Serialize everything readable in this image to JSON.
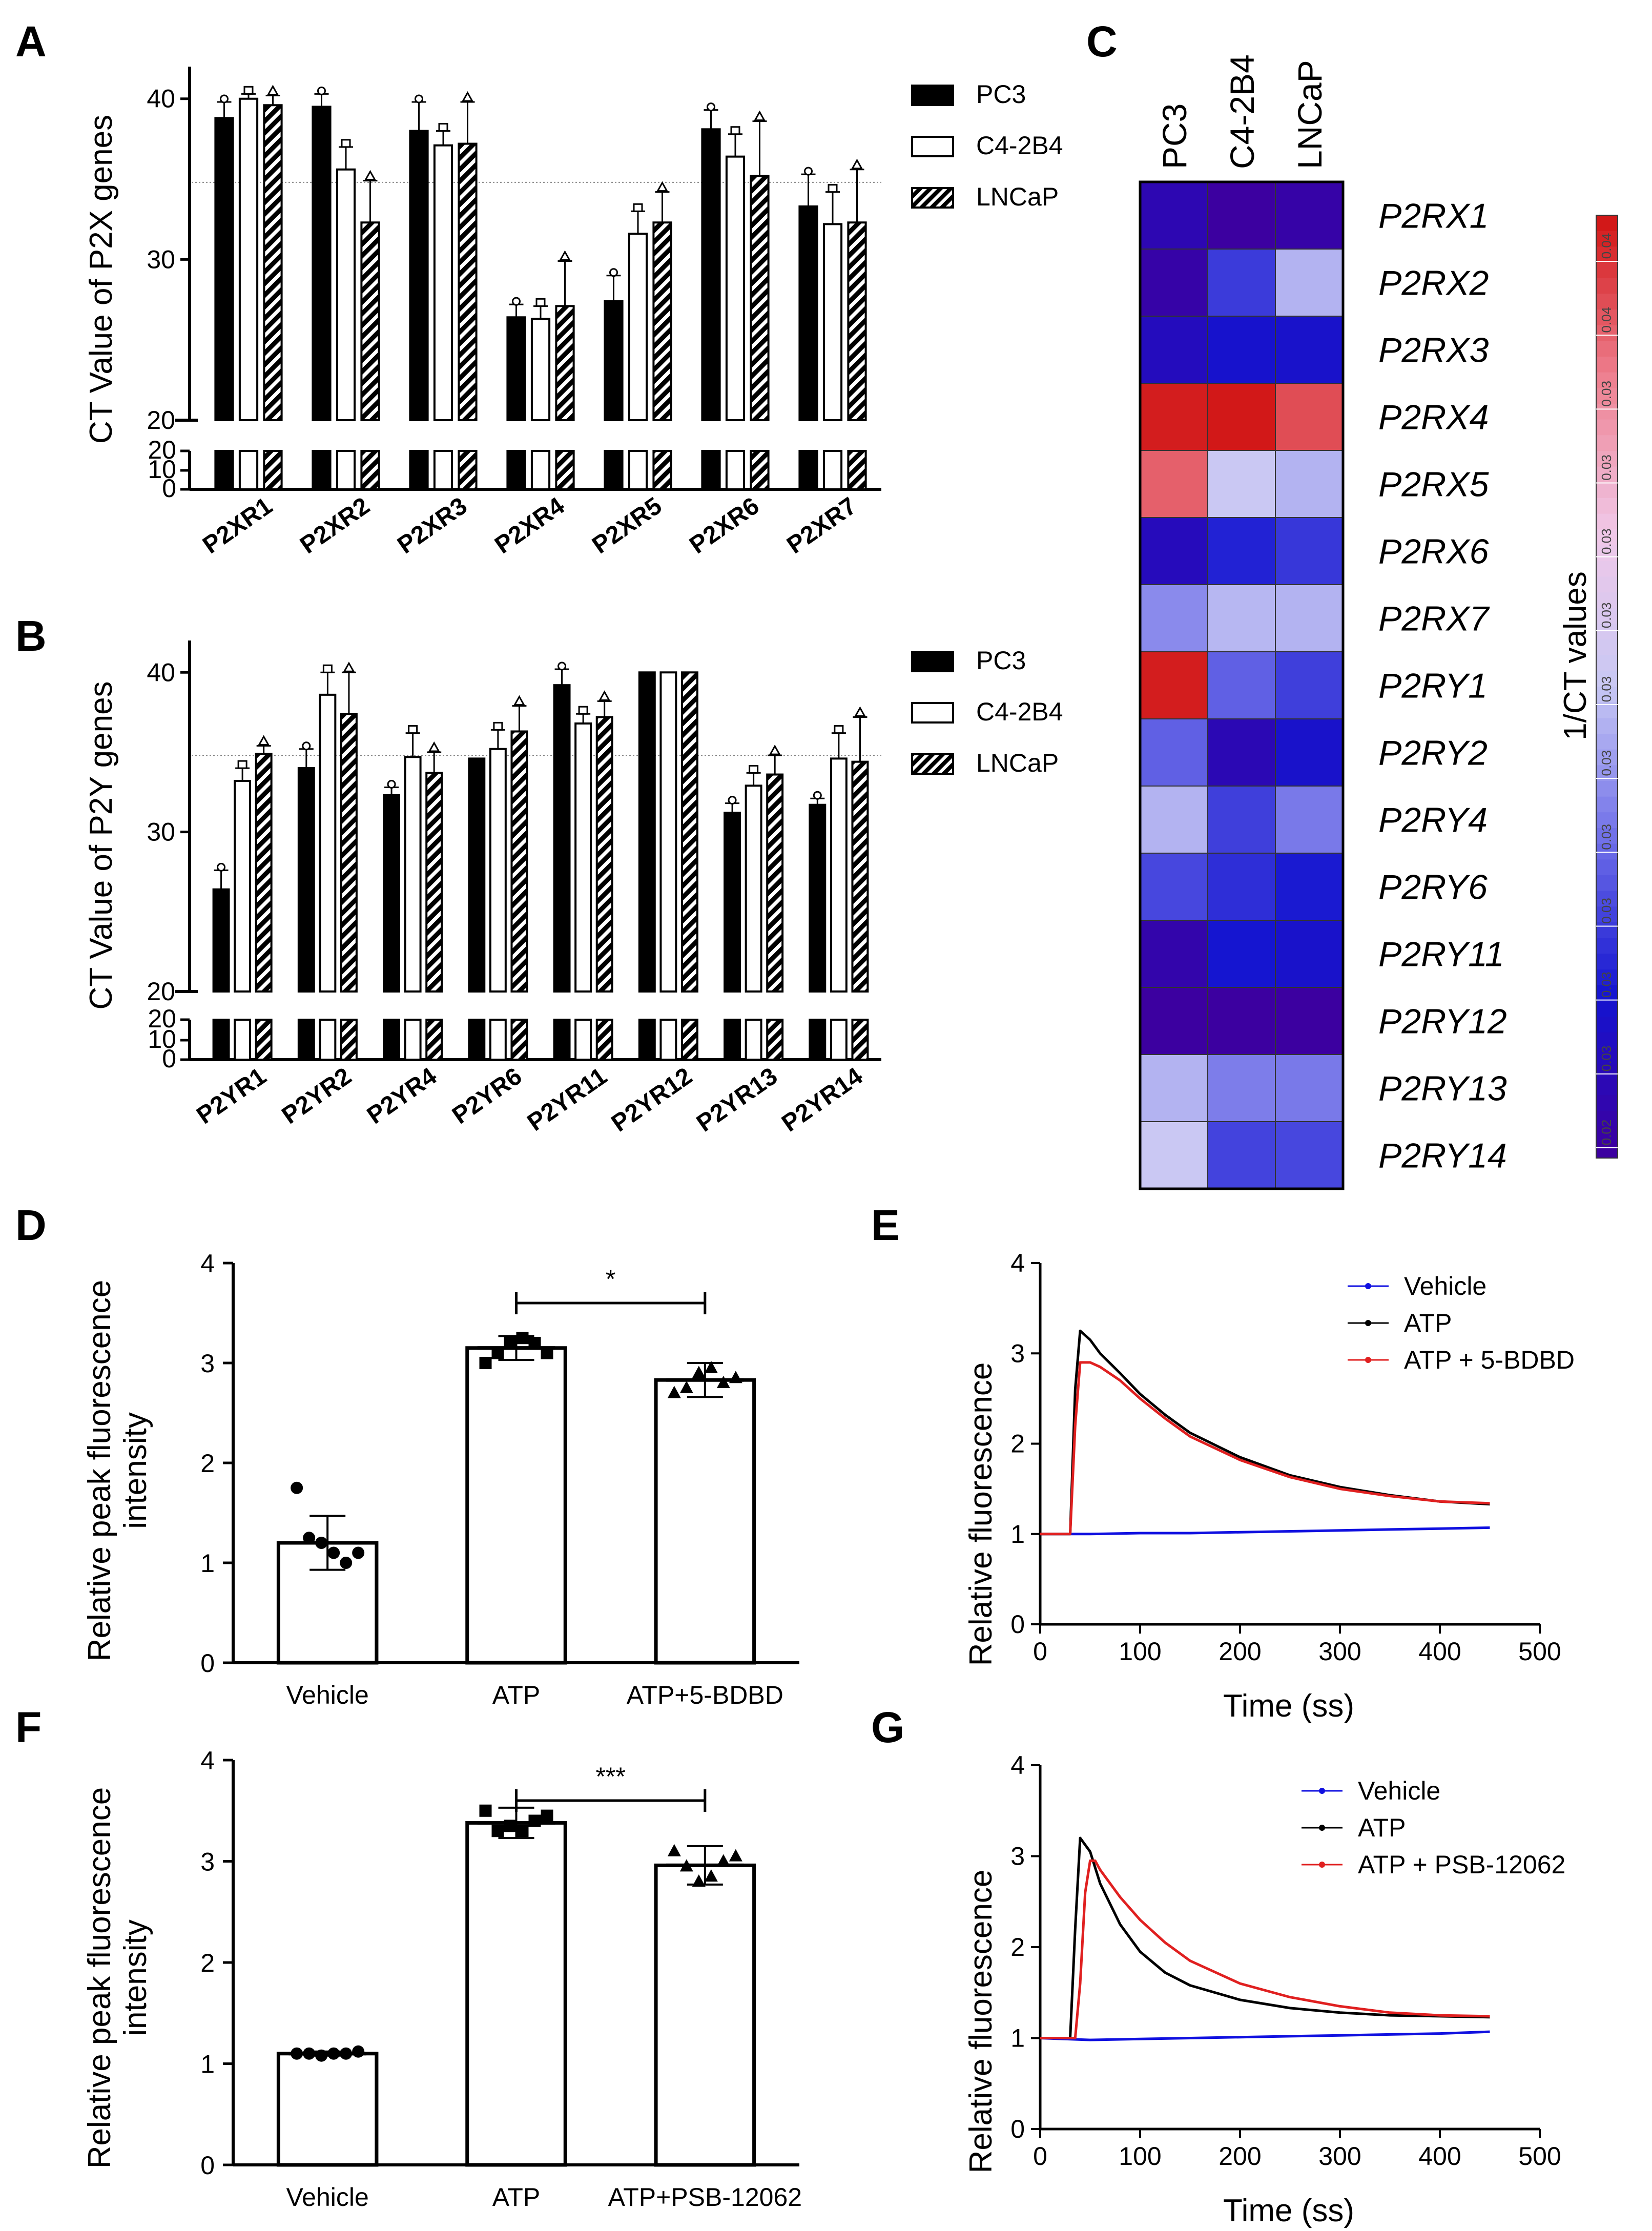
{
  "panels": {
    "A": {
      "letter": "A",
      "title": "",
      "ylabel": "CT Value of P2X genes",
      "yticks": [
        "0",
        "10",
        "20",
        "20",
        "30",
        "40"
      ]
    },
    "B": {
      "letter": "B",
      "title": "",
      "ylabel": "CT Value of P2Y genes",
      "yticks": [
        "0",
        "10",
        "20",
        "20",
        "30",
        "40"
      ]
    },
    "C": {
      "letter": "C",
      "title": "",
      "colorbar_label": "1/CT values",
      "colorbar_ticks": [
        "0.04",
        "0.04",
        "0.03",
        "0.03",
        "0.03",
        "0.03",
        "0.03",
        "0.03",
        "0.03",
        "0.03",
        "0.03",
        "0.03",
        "0.02"
      ]
    },
    "D": {
      "letter": "D",
      "title": "",
      "ylabel_line1": "Relative peak fluorescence",
      "ylabel_line2": "intensity",
      "significance": "*",
      "yticks": [
        "0",
        "1",
        "2",
        "3",
        "4"
      ]
    },
    "E": {
      "letter": "E",
      "title": "",
      "ylabel": "Relative fluorescence",
      "xlabel": "Time (ss)",
      "xticks": [
        "0",
        "100",
        "200",
        "300",
        "400",
        "500"
      ],
      "yticks": [
        "0",
        "1",
        "2",
        "3",
        "4"
      ]
    },
    "F": {
      "letter": "F",
      "title": "",
      "ylabel_line1": "Relative peak fluorescence",
      "ylabel_line2": "intensity",
      "significance": "***",
      "yticks": [
        "0",
        "1",
        "2",
        "3",
        "4"
      ]
    },
    "G": {
      "letter": "G",
      "title": "",
      "ylabel": "Relative fluorescence",
      "xlabel": "Time (ss)",
      "xticks": [
        "0",
        "100",
        "200",
        "300",
        "400",
        "500"
      ],
      "yticks": [
        "0",
        "1",
        "2",
        "3",
        "4"
      ]
    }
  },
  "legend_cells": [
    "PC3",
    "C4-2B4",
    "LNCaP"
  ],
  "chart_data": [
    {
      "id": "A",
      "type": "bar",
      "title": "",
      "xlabel": "",
      "ylabel": "CT Value of P2X genes",
      "categories": [
        "P2XR1",
        "P2XR2",
        "P2XR3",
        "P2XR4",
        "P2XR5",
        "P2XR6",
        "P2XR7"
      ],
      "ylim": [
        0,
        42
      ],
      "axis_break": [
        20,
        20
      ],
      "reference_line": 34.8,
      "series": [
        {
          "name": "PC3",
          "values": [
            38.8,
            39.5,
            38.0,
            26.4,
            27.4,
            38.1,
            33.3
          ],
          "errors": [
            1.0,
            0.8,
            1.8,
            0.8,
            1.6,
            1.2,
            2.0
          ]
        },
        {
          "name": "C4-2B4",
          "values": [
            40.0,
            35.6,
            37.1,
            26.3,
            31.6,
            36.4,
            32.2
          ],
          "errors": [
            0.3,
            1.4,
            0.9,
            0.8,
            1.4,
            1.4,
            2.0
          ]
        },
        {
          "name": "LNCaP",
          "values": [
            39.6,
            32.3,
            37.2,
            27.1,
            32.3,
            35.2,
            32.3
          ],
          "errors": [
            0.6,
            2.6,
            2.6,
            2.8,
            1.9,
            3.4,
            3.3
          ]
        }
      ]
    },
    {
      "id": "B",
      "type": "bar",
      "title": "",
      "xlabel": "",
      "ylabel": "CT Value of P2Y genes",
      "categories": [
        "P2YR1",
        "P2YR2",
        "P2YR4",
        "P2YR6",
        "P2YR11",
        "P2YR12",
        "P2YR13",
        "P2YR14"
      ],
      "ylim": [
        0,
        42
      ],
      "axis_break": [
        20,
        20
      ],
      "reference_line": 34.8,
      "series": [
        {
          "name": "PC3",
          "values": [
            26.4,
            34.0,
            32.3,
            34.6,
            39.2,
            40.0,
            31.2,
            31.7
          ],
          "errors": [
            1.2,
            1.2,
            0.5,
            0.0,
            1.0,
            0.0,
            0.6,
            0.4
          ]
        },
        {
          "name": "C4-2B4",
          "values": [
            33.2,
            38.6,
            34.7,
            35.2,
            36.8,
            40.0,
            32.9,
            34.6
          ],
          "errors": [
            0.8,
            1.4,
            1.5,
            1.2,
            0.6,
            0.0,
            0.8,
            1.6
          ]
        },
        {
          "name": "LNCaP",
          "values": [
            34.9,
            37.4,
            33.7,
            36.3,
            37.2,
            40.0,
            33.6,
            34.4
          ],
          "errors": [
            0.5,
            2.6,
            1.3,
            1.6,
            1.0,
            0.0,
            1.2,
            2.8
          ]
        }
      ]
    },
    {
      "id": "C",
      "type": "heatmap",
      "title": "",
      "columns": [
        "PC3",
        "C4-2B4",
        "LNCaP"
      ],
      "rows": [
        "P2RX1",
        "P2RX2",
        "P2RX3",
        "P2RX4",
        "P2RX5",
        "P2RX6",
        "P2RX7",
        "P2RY1",
        "P2RY2",
        "P2RY4",
        "P2RY6",
        "P2RY11",
        "P2RY12",
        "P2RY13",
        "P2RY14"
      ],
      "values": [
        [
          0.0258,
          0.025,
          0.0253
        ],
        [
          0.0253,
          0.0281,
          0.031
        ],
        [
          0.0263,
          0.027,
          0.0269
        ],
        [
          0.0379,
          0.038,
          0.0369
        ],
        [
          0.0365,
          0.0316,
          0.031
        ],
        [
          0.0262,
          0.0275,
          0.028
        ],
        [
          0.03,
          0.0311,
          0.031
        ],
        [
          0.0379,
          0.029,
          0.0282
        ],
        [
          0.029,
          0.0259,
          0.0269
        ],
        [
          0.031,
          0.0282,
          0.0296
        ],
        [
          0.0284,
          0.0278,
          0.0273
        ],
        [
          0.0255,
          0.0272,
          0.0269
        ],
        [
          0.025,
          0.025,
          0.025
        ],
        [
          0.031,
          0.0297,
          0.0296
        ],
        [
          0.0316,
          0.0283,
          0.0284
        ]
      ],
      "colorbar_label": "1/CT values",
      "vmin": 0.025,
      "vmax": 0.038,
      "colormap": [
        "#3c00a0",
        "#1414d0",
        "#6e6ee8",
        "#c8c8f4",
        "#f0c8e8",
        "#ee8090",
        "#d21818"
      ]
    },
    {
      "id": "D",
      "type": "bar",
      "title": "",
      "xlabel": "",
      "ylabel": "Relative peak fluorescence intensity",
      "categories": [
        "Vehicle",
        "ATP",
        "ATP+5-BDBD"
      ],
      "values": [
        1.2,
        3.15,
        2.83
      ],
      "errors": [
        0.27,
        0.12,
        0.17
      ],
      "points": [
        [
          1.75,
          1.25,
          1.2,
          1.1,
          1.0,
          1.1
        ],
        [
          3.0,
          3.1,
          3.2,
          3.25,
          3.2,
          3.1
        ],
        [
          2.7,
          2.75,
          2.9,
          2.95,
          2.8,
          2.85
        ]
      ],
      "ylim": [
        0,
        4
      ],
      "significance": {
        "between": [
          "ATP",
          "ATP+5-BDBD"
        ],
        "label": "*"
      }
    },
    {
      "id": "E",
      "type": "line",
      "title": "",
      "xlabel": "Time (ss)",
      "ylabel": "Relative fluorescence",
      "xlim": [
        0,
        500
      ],
      "ylim": [
        0,
        4
      ],
      "series": [
        {
          "name": "Vehicle",
          "color": "#1010e0",
          "x": [
            0,
            50,
            100,
            150,
            200,
            250,
            300,
            350,
            400,
            450
          ],
          "y": [
            1.0,
            1.0,
            1.01,
            1.01,
            1.02,
            1.03,
            1.04,
            1.05,
            1.06,
            1.07
          ]
        },
        {
          "name": "ATP",
          "color": "#000000",
          "x": [
            0,
            30,
            35,
            40,
            50,
            60,
            80,
            100,
            125,
            150,
            200,
            250,
            300,
            350,
            400,
            450
          ],
          "y": [
            1.0,
            1.0,
            2.6,
            3.25,
            3.15,
            3.0,
            2.78,
            2.55,
            2.32,
            2.12,
            1.85,
            1.65,
            1.52,
            1.43,
            1.36,
            1.33
          ]
        },
        {
          "name": "ATP + 5-BDBD",
          "color": "#e02020",
          "x": [
            0,
            30,
            35,
            40,
            50,
            60,
            80,
            100,
            125,
            150,
            200,
            250,
            300,
            350,
            400,
            450
          ],
          "y": [
            1.0,
            1.0,
            2.2,
            2.9,
            2.9,
            2.85,
            2.7,
            2.5,
            2.28,
            2.08,
            1.82,
            1.63,
            1.5,
            1.42,
            1.36,
            1.34
          ]
        }
      ]
    },
    {
      "id": "F",
      "type": "bar",
      "title": "",
      "xlabel": "",
      "ylabel": "Relative peak fluorescence intensity",
      "categories": [
        "Vehicle",
        "ATP",
        "ATP+PSB-12062"
      ],
      "values": [
        1.1,
        3.38,
        2.96
      ],
      "errors": [
        0.02,
        0.15,
        0.19
      ],
      "points": [
        [
          1.1,
          1.1,
          1.08,
          1.1,
          1.1,
          1.12
        ],
        [
          3.5,
          3.3,
          3.35,
          3.3,
          3.4,
          3.45
        ],
        [
          3.1,
          2.95,
          2.8,
          2.85,
          3.0,
          3.05
        ]
      ],
      "ylim": [
        0,
        4
      ],
      "significance": {
        "between": [
          "ATP",
          "ATP+PSB-12062"
        ],
        "label": "***"
      }
    },
    {
      "id": "G",
      "type": "line",
      "title": "",
      "xlabel": "Time (ss)",
      "ylabel": "Relative fluorescence",
      "xlim": [
        0,
        500
      ],
      "ylim": [
        0,
        4
      ],
      "series": [
        {
          "name": "Vehicle",
          "color": "#1010e0",
          "x": [
            0,
            50,
            100,
            150,
            200,
            250,
            300,
            350,
            400,
            450
          ],
          "y": [
            1.0,
            0.98,
            0.99,
            1.0,
            1.01,
            1.02,
            1.03,
            1.04,
            1.05,
            1.07
          ]
        },
        {
          "name": "ATP",
          "color": "#000000",
          "x": [
            0,
            30,
            35,
            40,
            50,
            60,
            80,
            100,
            125,
            150,
            200,
            250,
            300,
            350,
            400,
            450
          ],
          "y": [
            1.0,
            1.0,
            2.2,
            3.2,
            3.05,
            2.7,
            2.25,
            1.95,
            1.72,
            1.58,
            1.42,
            1.33,
            1.28,
            1.25,
            1.24,
            1.23
          ]
        },
        {
          "name": "ATP + PSB-12062",
          "color": "#e02020",
          "x": [
            0,
            35,
            40,
            45,
            50,
            55,
            60,
            80,
            100,
            125,
            150,
            200,
            250,
            300,
            350,
            400,
            450
          ],
          "y": [
            1.0,
            1.0,
            1.6,
            2.6,
            2.95,
            2.95,
            2.85,
            2.55,
            2.3,
            2.05,
            1.85,
            1.6,
            1.45,
            1.35,
            1.28,
            1.25,
            1.24
          ]
        }
      ]
    }
  ]
}
